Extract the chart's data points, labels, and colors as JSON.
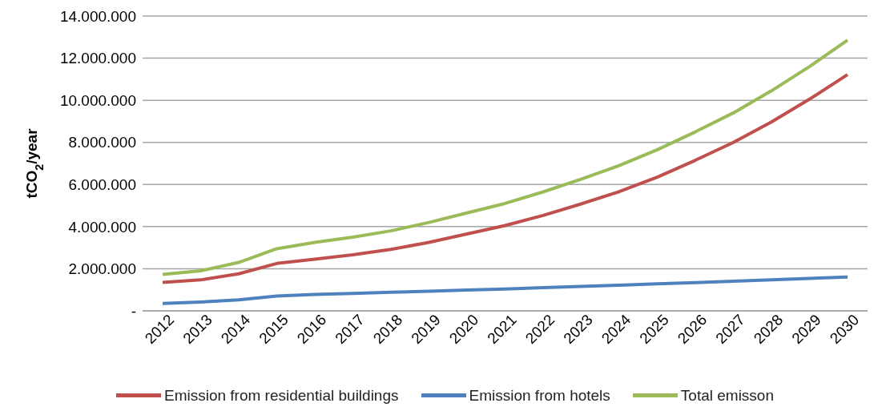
{
  "chart_data": {
    "type": "line",
    "ylabel": "tCO$_{2}$/year",
    "categories": [
      "2012",
      "2013",
      "2014",
      "2015",
      "2016",
      "2017",
      "2018",
      "2019",
      "2020",
      "2021",
      "2022",
      "2023",
      "2024",
      "2025",
      "2026",
      "2027",
      "2028",
      "2029",
      "2030"
    ],
    "series": [
      {
        "name": "Emission from residential buildings",
        "color": "#c0504d",
        "values": [
          1350000,
          1470000,
          1760000,
          2250000,
          2450000,
          2660000,
          2920000,
          3250000,
          3650000,
          4050000,
          4530000,
          5080000,
          5660000,
          6350000,
          7150000,
          8000000,
          8970000,
          10050000,
          11220000
        ]
      },
      {
        "name": "Emission from hotels",
        "color": "#4f81bd",
        "values": [
          350000,
          420000,
          520000,
          700000,
          780000,
          830000,
          880000,
          930000,
          990000,
          1040000,
          1100000,
          1160000,
          1220000,
          1280000,
          1340000,
          1410000,
          1470000,
          1540000,
          1610000
        ]
      },
      {
        "name": "Total emisson",
        "color": "#9bbb59",
        "values": [
          1730000,
          1900000,
          2300000,
          2950000,
          3250000,
          3500000,
          3800000,
          4200000,
          4650000,
          5100000,
          5650000,
          6250000,
          6900000,
          7650000,
          8500000,
          9400000,
          10450000,
          11600000,
          12850000
        ]
      }
    ],
    "ylim": [
      0,
      14000000
    ],
    "yticks": [
      {
        "value": 0,
        "label": "-"
      },
      {
        "value": 2000000,
        "label": "2.000.000"
      },
      {
        "value": 4000000,
        "label": "4.000.000"
      },
      {
        "value": 6000000,
        "label": "6.000.000"
      },
      {
        "value": 8000000,
        "label": "8.000.000"
      },
      {
        "value": 10000000,
        "label": "10.000.000"
      },
      {
        "value": 12000000,
        "label": "12.000.000"
      },
      {
        "value": 14000000,
        "label": "14.000.000"
      }
    ],
    "grid": "y",
    "legend": "bottom",
    "marker": "none",
    "line_style": "solid"
  }
}
